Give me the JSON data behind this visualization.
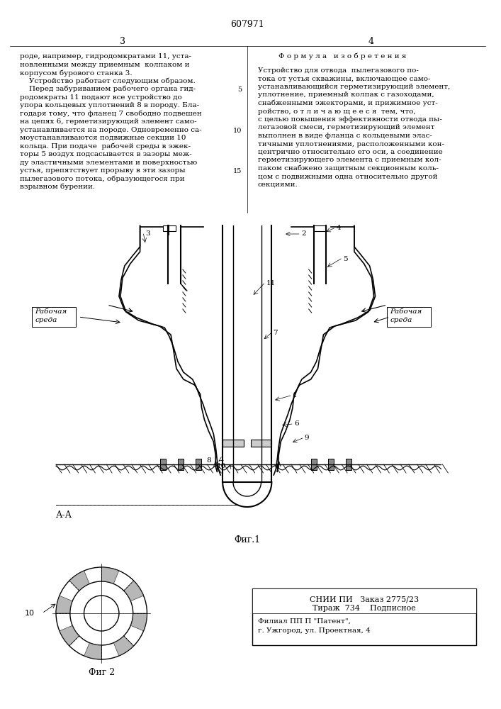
{
  "patent_number": "607971",
  "page_numbers": [
    "3",
    "4"
  ],
  "formula_title": "Ф о р м у л а   и з о б р е т е н и я",
  "left_column_text": [
    "роде, например, гидродомкратами 11, уста-",
    "новленными между приемным  колпаком и",
    "корпусом бурового станка 3.",
    "    Устройство работает следующим образом.",
    "    Перед забуриванием рабочего органа гид-",
    "родомкраты 11 подают все устройство до",
    "упора кольцевых уплотнений 8 в породу. Бла-",
    "годаря тому, что фланец 7 свободно подвешен",
    "на цепях 6, герметизирующий элемент само-",
    "устанавливается на породе. Одновременно са-",
    "моустанавливаются подвижные секции 10",
    "кольца. При подаче  рабочей среды в эжек-",
    "торы 5 воздух подсасывается в зазоры меж-",
    "ду эластичными элементами и поверхностью",
    "устья, препятствует прорыву в эти зазоры",
    "пылегазового потока, образующегося при",
    "взрывном бурении."
  ],
  "right_column_text": [
    "Устройство для отвода  пылегазового по-",
    "тока от устья скважины, включающее само-",
    "устанавливающийся герметизирующий элемент,",
    "уплотнение, приемный колпак с газоходами,",
    "снабженными эжекторами, и прижимное уст-",
    "ройство, о т л и ч а ю щ е е с я  тем, что,",
    "с целью повышения эффективности отвода пы-",
    "легазовой смеси, герметизирующий элемент",
    "выполнен в виде фланца с кольцевыми элас-",
    "тичными уплотнениями, расположенными кон-",
    "центрично относительно его оси, а соединение",
    "герметизирующего элемента с приемным кол-",
    "паком снабжено защитным секционным коль-",
    "цом с подвижными одна относительно другой",
    "секциями."
  ],
  "line_numbers_left": [
    "5",
    "10",
    "15"
  ],
  "line_numbers_right": [
    "5",
    "10",
    "15"
  ],
  "sniipi_text": [
    "СНИИ ПИ   Заказ 2775/23",
    "Тираж  734    Подписное"
  ],
  "filial_text": [
    "Филиал ПП П \"Патент\",",
    "г. Ужгород, ул. Проектная, 4"
  ],
  "fig1_label": "Фиг.1",
  "fig2_label": "Фиг 2",
  "aa_label": "А-А",
  "rабочая_среда_left": "Рабочая\nсреда",
  "рабочая_среда_right": "Рабочая\nсреда",
  "background_color": "#ffffff",
  "text_color": "#000000",
  "line_color": "#000000"
}
